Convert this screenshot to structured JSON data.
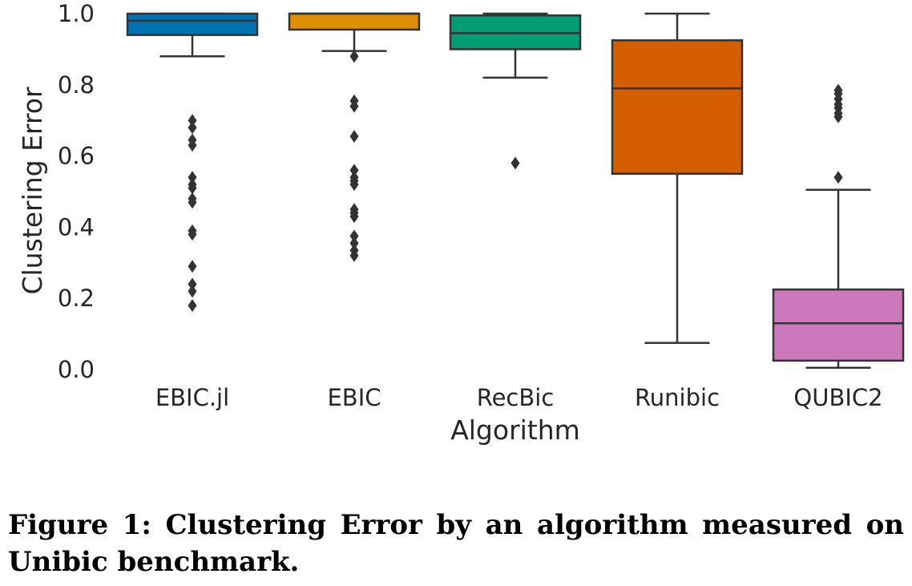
{
  "chart_data": {
    "type": "box",
    "xlabel": "Algorithm",
    "ylabel": "Clustering Error",
    "ylim": [
      0.0,
      1.0
    ],
    "yticks": [
      "0.0",
      "0.2",
      "0.4",
      "0.6",
      "0.8",
      "1.0"
    ],
    "grid": false,
    "categories": [
      "EBIC.jl",
      "EBIC",
      "RecBic",
      "Runibic",
      "QUBIC2"
    ],
    "boxes": [
      {
        "name": "EBIC.jl",
        "color": "#0173b2",
        "whisker_low": 0.88,
        "q1": 0.94,
        "median": 0.98,
        "q3": 1.0,
        "whisker_high": 1.0,
        "outliers": [
          0.7,
          0.68,
          0.645,
          0.63,
          0.54,
          0.52,
          0.51,
          0.48,
          0.47,
          0.39,
          0.38,
          0.29,
          0.24,
          0.22,
          0.18
        ]
      },
      {
        "name": "EBIC",
        "color": "#de8f05",
        "whisker_low": 0.895,
        "q1": 0.955,
        "median": 1.0,
        "q3": 1.0,
        "whisker_high": 1.0,
        "outliers": [
          0.88,
          0.755,
          0.74,
          0.655,
          0.56,
          0.54,
          0.53,
          0.52,
          0.45,
          0.44,
          0.43,
          0.375,
          0.355,
          0.335,
          0.32
        ]
      },
      {
        "name": "RecBic",
        "color": "#029e73",
        "whisker_low": 0.82,
        "q1": 0.9,
        "median": 0.945,
        "q3": 0.995,
        "whisker_high": 1.0,
        "outliers": [
          0.58
        ]
      },
      {
        "name": "Runibic",
        "color": "#d55e00",
        "whisker_low": 0.075,
        "q1": 0.55,
        "median": 0.79,
        "q3": 0.925,
        "whisker_high": 1.0,
        "outliers": []
      },
      {
        "name": "QUBIC2",
        "color": "#cc78bc",
        "whisker_low": 0.005,
        "q1": 0.025,
        "median": 0.13,
        "q3": 0.225,
        "whisker_high": 0.505,
        "outliers": [
          0.785,
          0.775,
          0.76,
          0.745,
          0.735,
          0.72,
          0.71,
          0.54
        ]
      }
    ]
  },
  "caption": "Figure 1: Clustering Error by an algorithm measured on Unibic benchmark."
}
